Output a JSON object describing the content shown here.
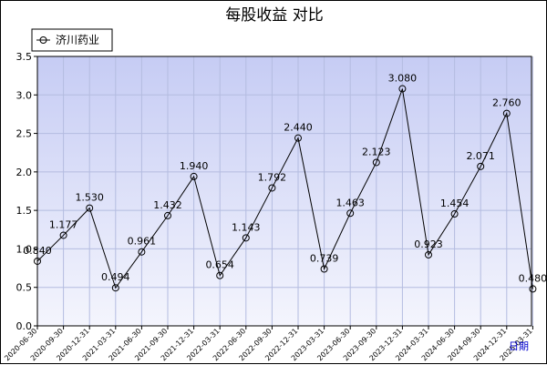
{
  "chart_data": {
    "type": "line",
    "title": "每股收益  对比",
    "xlabel": "日期",
    "ylabel": "",
    "ylim": [
      0,
      3.5
    ],
    "yticks": [
      "0.0",
      "0.5",
      "1.0",
      "1.5",
      "2.0",
      "2.5",
      "3.0",
      "3.5"
    ],
    "grid": true,
    "legend_position": "top-left",
    "categories": [
      "2020-06-30",
      "2020-09-30",
      "2020-12-31",
      "2021-03-31",
      "2021-06-30",
      "2021-09-30",
      "2021-12-31",
      "2022-03-31",
      "2022-06-30",
      "2022-09-30",
      "2022-12-31",
      "2023-03-31",
      "2023-06-30",
      "2023-09-30",
      "2023-12-31",
      "2024-03-31",
      "2024-06-30",
      "2024-09-30",
      "2024-12-31",
      "2025-03-31"
    ],
    "series": [
      {
        "name": "济川药业",
        "color": "#000000",
        "values": [
          0.84,
          1.177,
          1.53,
          0.494,
          0.961,
          1.432,
          1.94,
          0.654,
          1.143,
          1.792,
          2.44,
          0.739,
          1.463,
          2.123,
          3.08,
          0.923,
          1.454,
          2.071,
          2.76,
          0.48
        ],
        "labels": [
          "0.840",
          "1.177",
          "1.530",
          "0.494",
          "0.961",
          "1.432",
          "1.940",
          "0.654",
          "1.143",
          "1.792",
          "2.440",
          "0.739",
          "1.463",
          "2.123",
          "3.080",
          "0.923",
          "1.454",
          "2.071",
          "2.760",
          "0.480"
        ]
      }
    ],
    "colors": {
      "plot_bg_top": "#c6ccf4",
      "plot_bg_bottom": "#f4f5fd",
      "grid": "#b4bce0",
      "xlabel": "#0000cc"
    }
  }
}
